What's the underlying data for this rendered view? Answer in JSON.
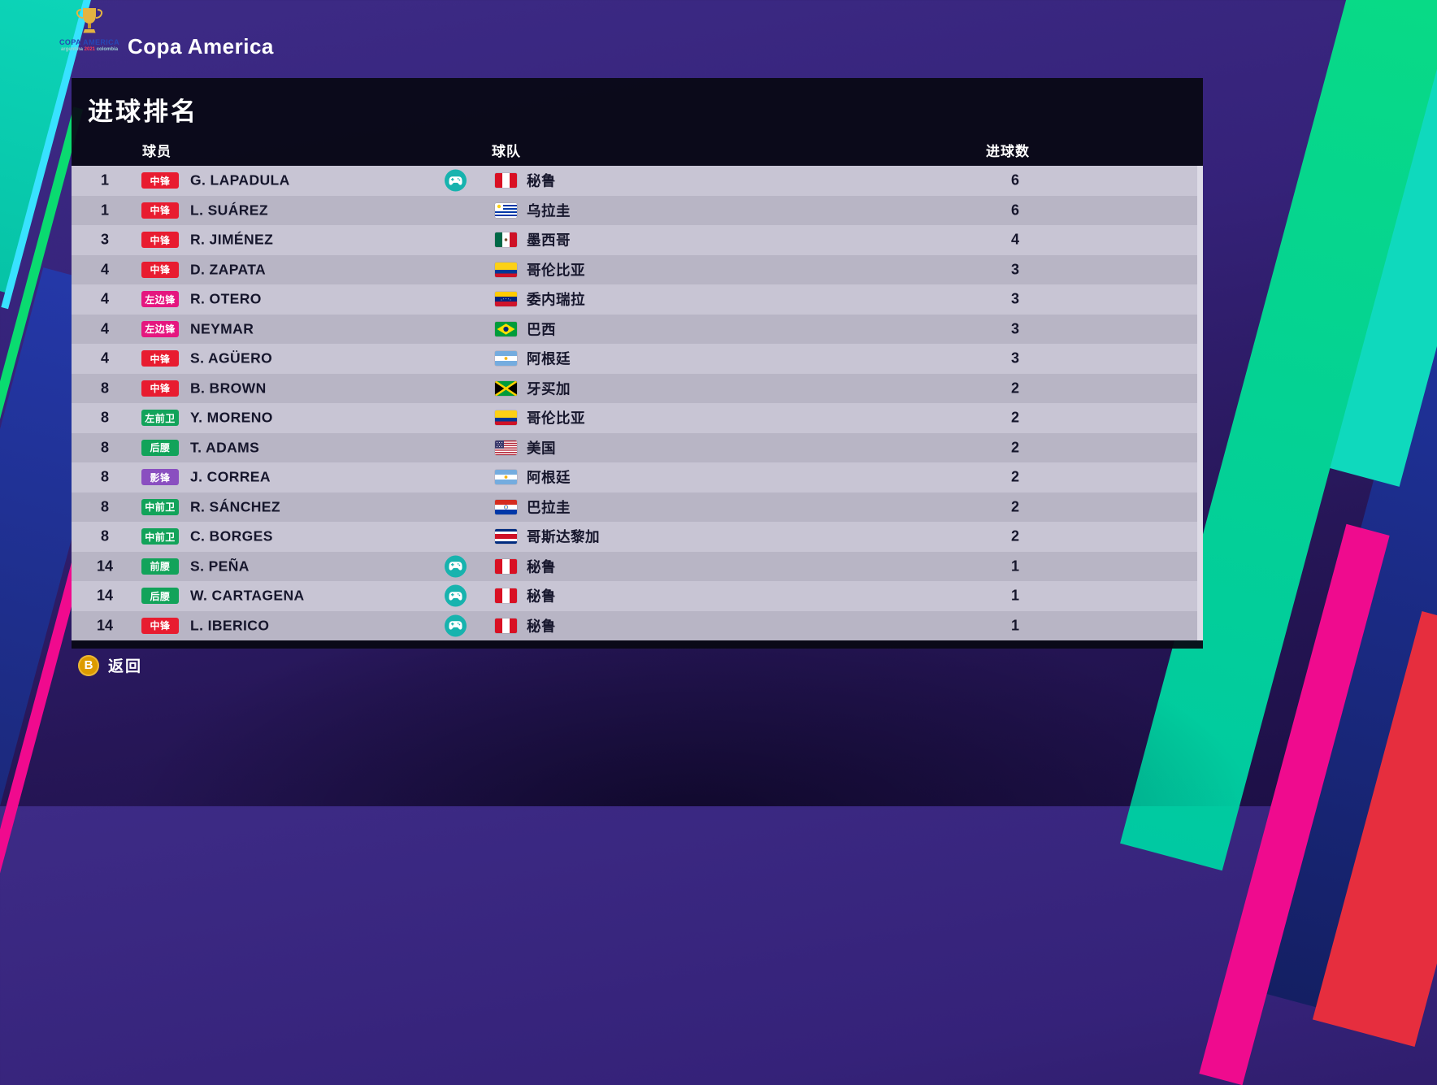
{
  "header": {
    "logo": {
      "title": "COPA AMERICA",
      "subtitle_left": "argentina",
      "year": "2021",
      "subtitle_right": "colombia"
    },
    "competition_title": "Copa America"
  },
  "panel": {
    "title": "进球排名",
    "columns": {
      "player": "球员",
      "team": "球队",
      "goals": "进球数"
    }
  },
  "positions": {
    "CF": {
      "label": "中锋",
      "color": "#e81c30"
    },
    "LWF": {
      "label": "左边锋",
      "color": "#e5167f"
    },
    "LMF": {
      "label": "左前卫",
      "color": "#12a35a"
    },
    "DMF": {
      "label": "后腰",
      "color": "#12a35a"
    },
    "SS": {
      "label": "影锋",
      "color": "#8a4fc0"
    },
    "CMF": {
      "label": "中前卫",
      "color": "#12a35a"
    },
    "AMF": {
      "label": "前腰",
      "color": "#12a35a"
    }
  },
  "controller_color": "#17b3ae",
  "rows": [
    {
      "rank": "1",
      "pos": "CF",
      "player": "G. LAPADULA",
      "controlled": true,
      "flag": "peru",
      "team": "秘鲁",
      "goals": "6"
    },
    {
      "rank": "1",
      "pos": "CF",
      "player": "L. SUÁREZ",
      "controlled": false,
      "flag": "uruguay",
      "team": "乌拉圭",
      "goals": "6"
    },
    {
      "rank": "3",
      "pos": "CF",
      "player": "R. JIMÉNEZ",
      "controlled": false,
      "flag": "mexico",
      "team": "墨西哥",
      "goals": "4"
    },
    {
      "rank": "4",
      "pos": "CF",
      "player": "D. ZAPATA",
      "controlled": false,
      "flag": "colombia",
      "team": "哥伦比亚",
      "goals": "3"
    },
    {
      "rank": "4",
      "pos": "LWF",
      "player": "R. OTERO",
      "controlled": false,
      "flag": "venezuela",
      "team": "委内瑞拉",
      "goals": "3"
    },
    {
      "rank": "4",
      "pos": "LWF",
      "player": "NEYMAR",
      "controlled": false,
      "flag": "brazil",
      "team": "巴西",
      "goals": "3"
    },
    {
      "rank": "4",
      "pos": "CF",
      "player": "S. AGÜERO",
      "controlled": false,
      "flag": "argentina",
      "team": "阿根廷",
      "goals": "3"
    },
    {
      "rank": "8",
      "pos": "CF",
      "player": "B. BROWN",
      "controlled": false,
      "flag": "jamaica",
      "team": "牙买加",
      "goals": "2"
    },
    {
      "rank": "8",
      "pos": "LMF",
      "player": "Y. MORENO",
      "controlled": false,
      "flag": "colombia",
      "team": "哥伦比亚",
      "goals": "2"
    },
    {
      "rank": "8",
      "pos": "DMF",
      "player": "T. ADAMS",
      "controlled": false,
      "flag": "usa",
      "team": "美国",
      "goals": "2"
    },
    {
      "rank": "8",
      "pos": "SS",
      "player": "J. CORREA",
      "controlled": false,
      "flag": "argentina",
      "team": "阿根廷",
      "goals": "2"
    },
    {
      "rank": "8",
      "pos": "CMF",
      "player": "R. SÁNCHEZ",
      "controlled": false,
      "flag": "paraguay",
      "team": "巴拉圭",
      "goals": "2"
    },
    {
      "rank": "8",
      "pos": "CMF",
      "player": "C. BORGES",
      "controlled": false,
      "flag": "costa_rica",
      "team": "哥斯达黎加",
      "goals": "2"
    },
    {
      "rank": "14",
      "pos": "AMF",
      "player": "S. PEÑA",
      "controlled": true,
      "flag": "peru",
      "team": "秘鲁",
      "goals": "1"
    },
    {
      "rank": "14",
      "pos": "DMF",
      "player": "W. CARTAGENA",
      "controlled": true,
      "flag": "peru",
      "team": "秘鲁",
      "goals": "1"
    },
    {
      "rank": "14",
      "pos": "CF",
      "player": "L. IBERICO",
      "controlled": true,
      "flag": "peru",
      "team": "秘鲁",
      "goals": "1"
    }
  ],
  "footer": {
    "back_button": "B",
    "back_label": "返回"
  }
}
